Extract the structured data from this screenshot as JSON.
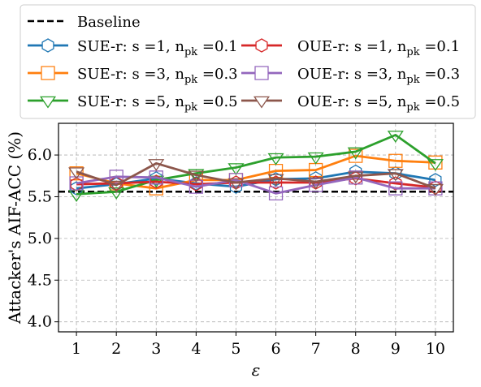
{
  "chart_data": {
    "type": "line",
    "xlabel": "ε",
    "ylabel": "Attacker's AIF-ACC (%)",
    "xlim": [
      0.55,
      10.45
    ],
    "ylim": [
      3.88,
      6.38
    ],
    "x": [
      1,
      2,
      3,
      4,
      5,
      6,
      7,
      8,
      9,
      10
    ],
    "xticks": [
      "1",
      "2",
      "3",
      "4",
      "5",
      "6",
      "7",
      "8",
      "9",
      "10"
    ],
    "yticks": [
      4.0,
      4.5,
      5.0,
      5.5,
      6.0
    ],
    "ytick_labels": [
      "4.0",
      "4.5",
      "5.0",
      "5.5",
      "6.0"
    ],
    "grid": true,
    "legend_position": "top, two columns",
    "baseline": {
      "name": "Baseline",
      "value": 5.56,
      "color": "#000000",
      "style": "dashed"
    },
    "series": [
      {
        "name": "SUE-r: s =1, npk =0.1",
        "label_parts": [
          "SUE-r: s =1, n",
          "pk",
          " =0.1"
        ],
        "color": "#1f77b4",
        "marker": "hexagon",
        "values": [
          5.6,
          5.65,
          5.72,
          5.66,
          5.62,
          5.71,
          5.72,
          5.8,
          5.78,
          5.7
        ]
      },
      {
        "name": "SUE-r: s =3, npk =0.3",
        "label_parts": [
          "SUE-r: s =3, n",
          "pk",
          " =0.3"
        ],
        "color": "#ff7f0e",
        "marker": "square",
        "values": [
          5.78,
          5.66,
          5.6,
          5.7,
          5.7,
          5.81,
          5.82,
          5.99,
          5.93,
          5.91
        ]
      },
      {
        "name": "SUE-r: s =5, npk =0.5",
        "label_parts": [
          "SUE-r: s =5, n",
          "pk",
          " =0.5"
        ],
        "color": "#2ca02c",
        "marker": "triangle-down",
        "values": [
          5.53,
          5.56,
          5.7,
          5.78,
          5.85,
          5.97,
          5.98,
          6.04,
          6.24,
          5.9
        ]
      },
      {
        "name": "OUE-r: s =1, npk =0.1",
        "label_parts": [
          "OUE-r: s =1, n",
          "pk",
          " =0.1"
        ],
        "color": "#d62728",
        "marker": "hexagon",
        "values": [
          5.65,
          5.66,
          5.68,
          5.65,
          5.67,
          5.67,
          5.67,
          5.72,
          5.66,
          5.61
        ]
      },
      {
        "name": "OUE-r: s =3, npk =0.3",
        "label_parts": [
          "OUE-r: s =3, n",
          "pk",
          " =0.3"
        ],
        "color": "#9467bd",
        "marker": "square",
        "values": [
          5.66,
          5.74,
          5.73,
          5.62,
          5.7,
          5.54,
          5.64,
          5.73,
          5.6,
          5.6
        ]
      },
      {
        "name": "OUE-r: s =5, npk =0.5",
        "label_parts": [
          "OUE-r: s =5, n",
          "pk",
          " =0.5"
        ],
        "color": "#8c564b",
        "marker": "triangle-down",
        "values": [
          5.8,
          5.64,
          5.9,
          5.76,
          5.67,
          5.72,
          5.68,
          5.75,
          5.78,
          5.6
        ]
      }
    ]
  }
}
